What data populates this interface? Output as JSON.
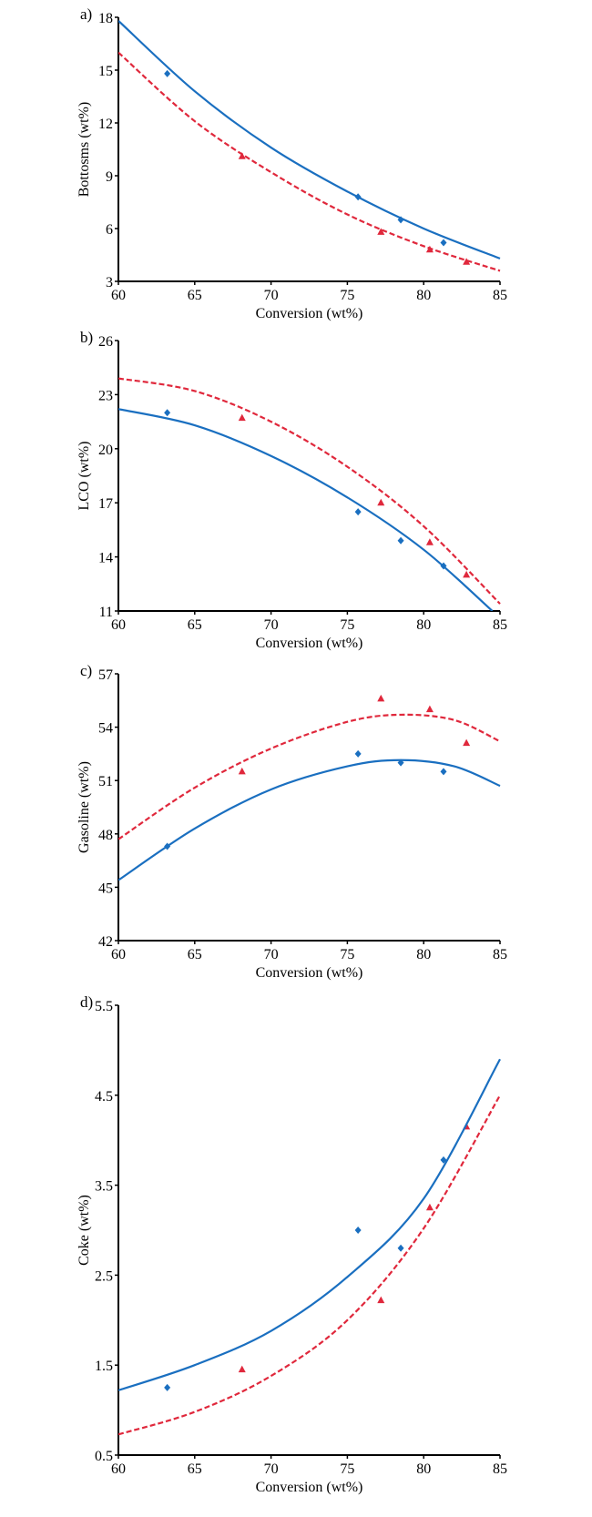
{
  "chart_data": [
    {
      "type": "line",
      "panel_label": "a)",
      "xlabel": "Conversion (wt%)",
      "ylabel": "Bottosms (wt%)",
      "xlim": [
        60,
        85
      ],
      "ylim": [
        3,
        18
      ],
      "xticks": [
        60,
        65,
        70,
        75,
        80,
        85
      ],
      "yticks": [
        3,
        6,
        9,
        12,
        15,
        18
      ],
      "series": [
        {
          "name": "blue-points",
          "marker": "diamond",
          "color": "#1a6fc0",
          "x": [
            63.2,
            75.7,
            78.5,
            81.3
          ],
          "y": [
            14.8,
            7.8,
            6.5,
            5.2
          ]
        },
        {
          "name": "red-points",
          "marker": "triangle",
          "color": "#e0283c",
          "x": [
            68.1,
            77.2,
            80.4,
            82.8
          ],
          "y": [
            10.1,
            5.8,
            4.8,
            4.1
          ]
        },
        {
          "name": "blue-curve",
          "style": "solid",
          "color": "#1a6fc0",
          "x": [
            60,
            65,
            70,
            75,
            80,
            85
          ],
          "y": [
            17.8,
            13.8,
            10.6,
            8.1,
            6.0,
            4.3
          ]
        },
        {
          "name": "red-curve",
          "style": "dashed",
          "color": "#e0283c",
          "x": [
            60,
            65,
            70,
            75,
            80,
            85
          ],
          "y": [
            16.0,
            12.1,
            9.2,
            6.8,
            5.0,
            3.6
          ]
        }
      ]
    },
    {
      "type": "line",
      "panel_label": "b)",
      "xlabel": "Conversion (wt%)",
      "ylabel": "LCO (wt%)",
      "xlim": [
        60,
        85
      ],
      "ylim": [
        11,
        26
      ],
      "xticks": [
        60,
        65,
        70,
        75,
        80,
        85
      ],
      "yticks": [
        11,
        14,
        17,
        20,
        23,
        26
      ],
      "series": [
        {
          "name": "blue-points",
          "marker": "diamond",
          "color": "#1a6fc0",
          "x": [
            63.2,
            75.7,
            78.5,
            81.3
          ],
          "y": [
            22.0,
            16.5,
            14.9,
            13.5
          ]
        },
        {
          "name": "red-points",
          "marker": "triangle",
          "color": "#e0283c",
          "x": [
            68.1,
            77.2,
            80.4,
            82.8
          ],
          "y": [
            21.7,
            17.0,
            14.8,
            13.0
          ]
        },
        {
          "name": "blue-curve",
          "style": "solid",
          "color": "#1a6fc0",
          "x": [
            60,
            65,
            70,
            75,
            80,
            84.5
          ],
          "y": [
            22.2,
            21.3,
            19.6,
            17.3,
            14.4,
            11.0
          ]
        },
        {
          "name": "red-curve",
          "style": "dashed",
          "color": "#e0283c",
          "x": [
            60,
            65,
            70,
            75,
            80,
            85
          ],
          "y": [
            23.9,
            23.2,
            21.5,
            19.0,
            15.7,
            11.4
          ]
        }
      ]
    },
    {
      "type": "line",
      "panel_label": "c)",
      "xlabel": "Conversion (wt%)",
      "ylabel": "Gasoline (wt%)",
      "xlim": [
        60,
        85
      ],
      "ylim": [
        42,
        57
      ],
      "xticks": [
        60,
        65,
        70,
        75,
        80,
        85
      ],
      "yticks": [
        42,
        45,
        48,
        51,
        54,
        57
      ],
      "series": [
        {
          "name": "blue-points",
          "marker": "diamond",
          "color": "#1a6fc0",
          "x": [
            63.2,
            75.7,
            78.5,
            81.3
          ],
          "y": [
            47.3,
            52.5,
            52.0,
            51.5
          ]
        },
        {
          "name": "red-points",
          "marker": "triangle",
          "color": "#e0283c",
          "x": [
            68.1,
            77.2,
            80.4,
            82.8
          ],
          "y": [
            51.5,
            55.6,
            55.0,
            53.1
          ]
        },
        {
          "name": "blue-curve",
          "style": "solid",
          "color": "#1a6fc0",
          "x": [
            60,
            65,
            70,
            75,
            78.5,
            82,
            85
          ],
          "y": [
            45.4,
            48.3,
            50.5,
            51.8,
            52.15,
            51.8,
            50.7
          ]
        },
        {
          "name": "red-curve",
          "style": "dashed",
          "color": "#e0283c",
          "x": [
            60,
            65,
            70,
            75,
            78.5,
            82,
            85
          ],
          "y": [
            47.7,
            50.6,
            52.8,
            54.3,
            54.7,
            54.4,
            53.2
          ]
        }
      ]
    },
    {
      "type": "line",
      "panel_label": "d)",
      "xlabel": "Conversion (wt%)",
      "ylabel": "Coke (wt%)",
      "xlim": [
        60,
        85
      ],
      "ylim": [
        0.5,
        5.5
      ],
      "xticks": [
        60,
        65,
        70,
        75,
        80,
        85
      ],
      "yticks": [
        0.5,
        1.5,
        2.5,
        3.5,
        4.5,
        5.5
      ],
      "series": [
        {
          "name": "blue-points",
          "marker": "diamond",
          "color": "#1a6fc0",
          "x": [
            63.2,
            75.7,
            78.5,
            81.3
          ],
          "y": [
            1.25,
            3.0,
            2.8,
            3.78
          ]
        },
        {
          "name": "red-points",
          "marker": "triangle",
          "color": "#e0283c",
          "x": [
            68.1,
            77.2,
            80.4,
            82.8
          ],
          "y": [
            1.45,
            2.22,
            3.25,
            4.15
          ]
        },
        {
          "name": "blue-curve",
          "style": "solid",
          "color": "#1a6fc0",
          "x": [
            60,
            65,
            70,
            75,
            80,
            85
          ],
          "y": [
            1.22,
            1.5,
            1.88,
            2.48,
            3.35,
            4.9
          ]
        },
        {
          "name": "red-curve",
          "style": "dashed",
          "color": "#e0283c",
          "x": [
            60,
            65,
            70,
            75,
            80,
            85
          ],
          "y": [
            0.73,
            0.98,
            1.38,
            2.0,
            3.02,
            4.5
          ]
        }
      ]
    }
  ]
}
